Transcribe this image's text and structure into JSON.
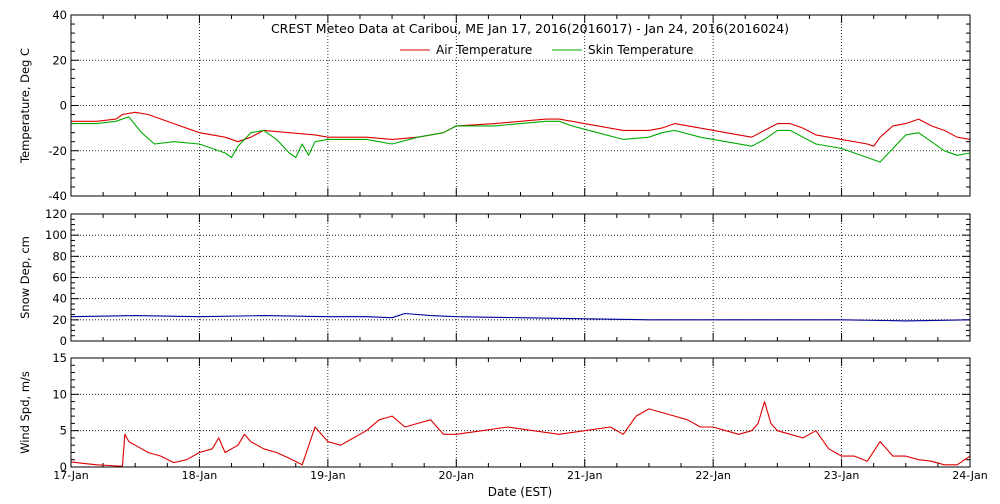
{
  "title": "CREST Meteo Data at Caribou, ME   Jan 17, 2016(2016017) - Jan 24, 2016(2016024)",
  "xlabel": "Date (EST)",
  "x_ticks": [
    "17-Jan",
    "18-Jan",
    "19-Jan",
    "20-Jan",
    "21-Jan",
    "22-Jan",
    "23-Jan",
    "24-Jan"
  ],
  "colors": {
    "air": "#dd0000",
    "skin": "#00aa00",
    "snow": "#000099",
    "wind": "#dd0000",
    "axis": "#000000",
    "grid": "#000000"
  },
  "chart_data": [
    {
      "type": "line",
      "id": "temperature",
      "ylabel": "Temperature, Deg C",
      "ylim": [
        -40,
        40
      ],
      "y_ticks": [
        "-40",
        "-20",
        "0",
        "20",
        "40"
      ],
      "xlim": [
        0,
        7
      ],
      "grid": true,
      "legend": "top-center",
      "series": [
        {
          "name": "Air Temperature",
          "x": [
            0,
            0.2,
            0.35,
            0.4,
            0.5,
            0.6,
            0.8,
            1.0,
            1.2,
            1.3,
            1.4,
            1.5,
            1.7,
            1.9,
            2.0,
            2.3,
            2.5,
            2.7,
            2.9,
            3.0,
            3.3,
            3.5,
            3.7,
            3.8,
            3.9,
            4.1,
            4.3,
            4.5,
            4.6,
            4.7,
            4.9,
            5.1,
            5.3,
            5.4,
            5.5,
            5.6,
            5.7,
            5.8,
            6.0,
            6.2,
            6.25,
            6.3,
            6.4,
            6.5,
            6.6,
            6.7,
            6.8,
            6.9,
            7.0
          ],
          "y": [
            -7,
            -7,
            -6,
            -4,
            -3,
            -4,
            -8,
            -12,
            -14,
            -16,
            -14,
            -11,
            -12,
            -13,
            -14,
            -14,
            -15,
            -14,
            -12,
            -9,
            -8,
            -7,
            -6,
            -6,
            -7,
            -9,
            -11,
            -11,
            -10,
            -8,
            -10,
            -12,
            -14,
            -11,
            -8,
            -8,
            -10,
            -13,
            -15,
            -17,
            -18,
            -14,
            -9,
            -8,
            -6,
            -9,
            -11,
            -14,
            -15
          ]
        },
        {
          "name": "Skin Temperature",
          "x": [
            0,
            0.2,
            0.35,
            0.45,
            0.55,
            0.65,
            0.8,
            1.0,
            1.1,
            1.2,
            1.25,
            1.3,
            1.4,
            1.5,
            1.6,
            1.7,
            1.75,
            1.8,
            1.85,
            1.9,
            2.0,
            2.3,
            2.5,
            2.7,
            2.9,
            3.0,
            3.3,
            3.5,
            3.7,
            3.8,
            3.9,
            4.1,
            4.3,
            4.5,
            4.6,
            4.7,
            4.9,
            5.1,
            5.3,
            5.4,
            5.5,
            5.6,
            5.7,
            5.8,
            6.0,
            6.1,
            6.2,
            6.3,
            6.4,
            6.5,
            6.6,
            6.7,
            6.8,
            6.9,
            7.0
          ],
          "y": [
            -8,
            -8,
            -7,
            -5,
            -12,
            -17,
            -16,
            -17,
            -19,
            -21,
            -23,
            -18,
            -12,
            -11,
            -15,
            -21,
            -23,
            -17,
            -22,
            -16,
            -15,
            -15,
            -17,
            -14,
            -12,
            -9,
            -9,
            -8,
            -7,
            -7,
            -9,
            -12,
            -15,
            -14,
            -12,
            -11,
            -14,
            -16,
            -18,
            -15,
            -11,
            -11,
            -14,
            -17,
            -19,
            -21,
            -23,
            -25,
            -19,
            -13,
            -12,
            -16,
            -20,
            -22,
            -21
          ]
        }
      ]
    },
    {
      "type": "line",
      "id": "snow",
      "ylabel": "Snow Dep, cm",
      "ylim": [
        0,
        120
      ],
      "y_ticks": [
        "0",
        "20",
        "40",
        "60",
        "80",
        "100",
        "120"
      ],
      "xlim": [
        0,
        7
      ],
      "grid": true,
      "series": [
        {
          "x": [
            0,
            0.5,
            1.0,
            1.5,
            2.0,
            2.3,
            2.5,
            2.6,
            2.8,
            3.0,
            3.5,
            4.0,
            4.5,
            5.0,
            5.5,
            6.0,
            6.5,
            7.0
          ],
          "y": [
            23,
            24,
            23,
            24,
            23,
            23,
            22,
            26,
            24,
            23,
            22,
            21,
            20,
            20,
            20,
            20,
            19,
            20
          ]
        }
      ]
    },
    {
      "type": "line",
      "id": "wind",
      "ylabel": "Wind Spd, m/s",
      "ylim": [
        0,
        15
      ],
      "y_ticks": [
        "0",
        "5",
        "10",
        "15"
      ],
      "xlim": [
        0,
        7
      ],
      "grid": true,
      "series": [
        {
          "x": [
            0,
            0.1,
            0.2,
            0.3,
            0.4,
            0.42,
            0.45,
            0.5,
            0.6,
            0.7,
            0.8,
            0.9,
            1.0,
            1.1,
            1.15,
            1.2,
            1.3,
            1.35,
            1.4,
            1.5,
            1.6,
            1.7,
            1.8,
            1.9,
            2.0,
            2.1,
            2.2,
            2.3,
            2.4,
            2.5,
            2.6,
            2.7,
            2.8,
            2.9,
            3.0,
            3.2,
            3.4,
            3.6,
            3.8,
            4.0,
            4.2,
            4.3,
            4.4,
            4.5,
            4.6,
            4.7,
            4.8,
            4.9,
            5.0,
            5.1,
            5.2,
            5.3,
            5.35,
            5.4,
            5.45,
            5.5,
            5.6,
            5.7,
            5.8,
            5.9,
            6.0,
            6.1,
            6.2,
            6.3,
            6.4,
            6.5,
            6.6,
            6.7,
            6.8,
            6.9,
            7.0
          ],
          "y": [
            0.7,
            0.5,
            0.3,
            0.2,
            0.1,
            4.5,
            3.5,
            3,
            2,
            1.5,
            0.6,
            1,
            2,
            2.5,
            4,
            2,
            3,
            4.5,
            3.5,
            2.5,
            2,
            1.2,
            0.3,
            5.5,
            3.5,
            3,
            4,
            5,
            6.5,
            7,
            5.5,
            6,
            6.5,
            4.5,
            4.5,
            5,
            5.5,
            5,
            4.5,
            5,
            5.5,
            4.5,
            7,
            8,
            7.5,
            7,
            6.5,
            5.5,
            5.5,
            5,
            4.5,
            5,
            6,
            9,
            6,
            5,
            4.5,
            4,
            5,
            2.5,
            1.5,
            1.5,
            0.8,
            3.5,
            1.5,
            1.5,
            1,
            0.8,
            0.3,
            0.3,
            1.5
          ]
        }
      ]
    }
  ]
}
